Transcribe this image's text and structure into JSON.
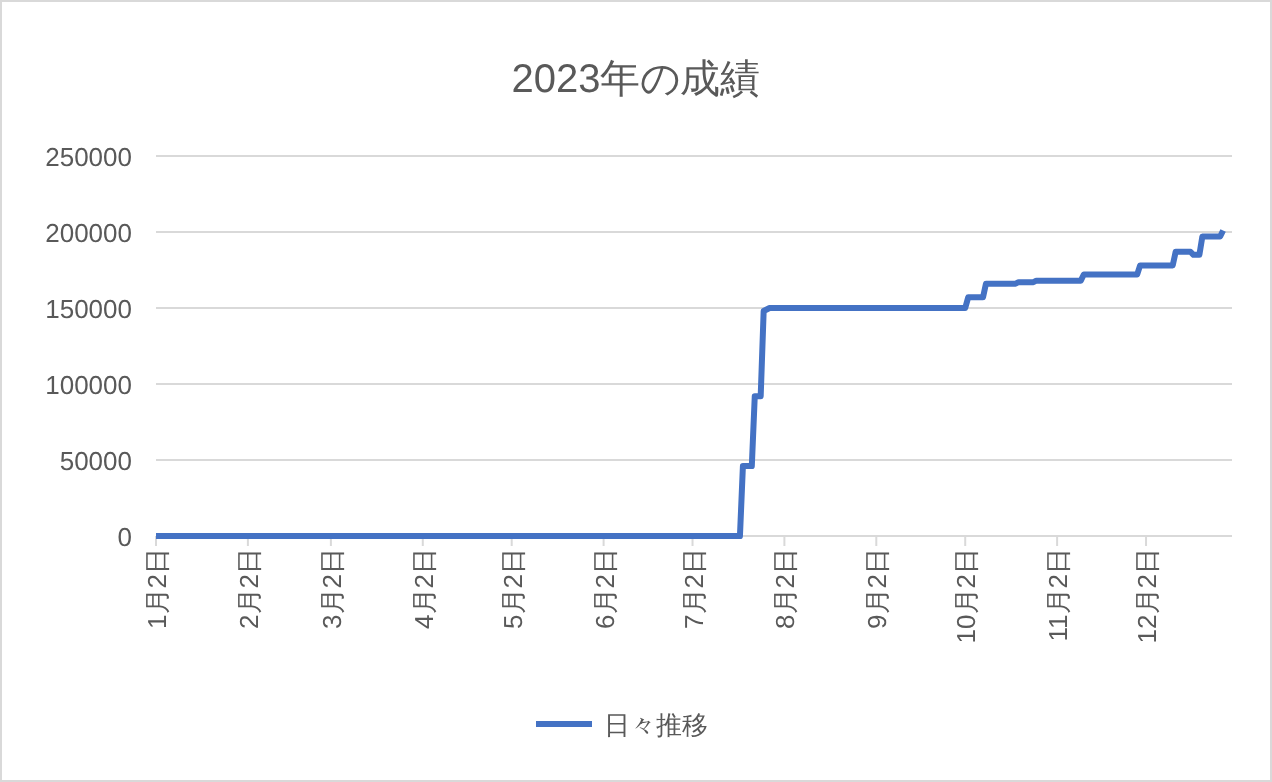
{
  "chart_data": {
    "type": "line",
    "title": "2023年の成績",
    "x": [
      "--01-02",
      "--07-18",
      "--07-19",
      "--07-22",
      "--07-23",
      "--07-25",
      "--07-26",
      "--07-28",
      "--10-02",
      "--10-03",
      "--10-08",
      "--10-09",
      "--10-19",
      "--10-20",
      "--10-25",
      "--10-26",
      "--11-10",
      "--11-11",
      "--11-29",
      "--11-30",
      "--12-11",
      "--12-12",
      "--12-17",
      "--12-18",
      "--12-20",
      "--12-21",
      "--12-27",
      "--12-28"
    ],
    "series": [
      {
        "name": "日々推移",
        "color": "#4472c4",
        "values": [
          0,
          0,
          46000,
          46000,
          92000,
          92000,
          148000,
          150000,
          150000,
          157000,
          157000,
          166000,
          166000,
          167000,
          167000,
          168000,
          168000,
          172000,
          172000,
          178000,
          178000,
          187000,
          187000,
          185000,
          185000,
          197000,
          197000,
          201000
        ]
      }
    ],
    "xlim": [
      "--01-02",
      "--12-31"
    ],
    "xticks": [
      {
        "value": "--01-02",
        "label": "1月2日"
      },
      {
        "value": "--02-02",
        "label": "2月2日"
      },
      {
        "value": "--03-02",
        "label": "3月2日"
      },
      {
        "value": "--04-02",
        "label": "4月2日"
      },
      {
        "value": "--05-02",
        "label": "5月2日"
      },
      {
        "value": "--06-02",
        "label": "6月2日"
      },
      {
        "value": "--07-02",
        "label": "7月2日"
      },
      {
        "value": "--08-02",
        "label": "8月2日"
      },
      {
        "value": "--09-02",
        "label": "9月2日"
      },
      {
        "value": "--10-02",
        "label": "10月2日"
      },
      {
        "value": "--11-02",
        "label": "11月2日"
      },
      {
        "value": "--12-02",
        "label": "12月2日"
      }
    ],
    "ylim": [
      0,
      250000
    ],
    "yticks": [
      0,
      50000,
      100000,
      150000,
      200000,
      250000
    ],
    "grid": "y",
    "legend": "bottom",
    "marker": "none",
    "line_style": "solid"
  }
}
